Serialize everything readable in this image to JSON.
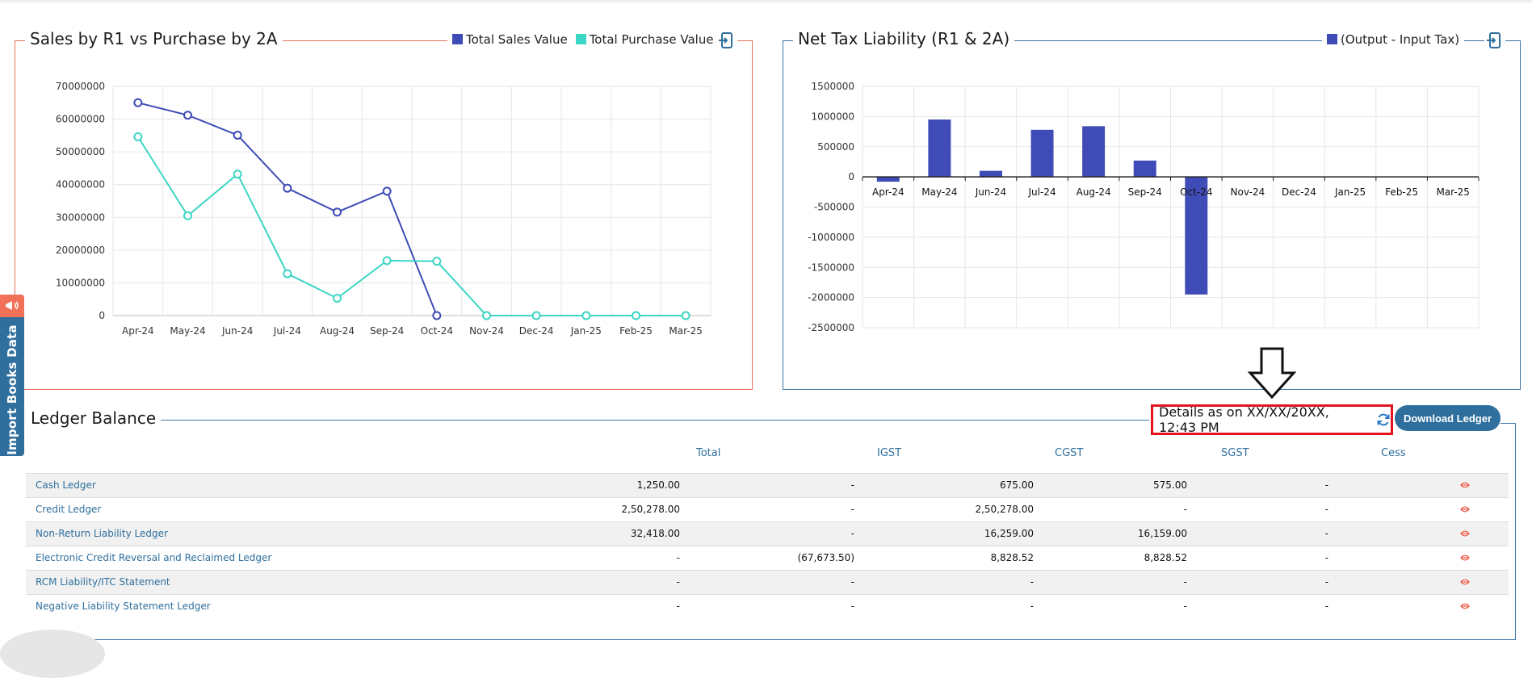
{
  "sales_chart": {
    "title": "Sales by R1 vs Purchase by 2A",
    "legend": [
      {
        "label": "Total Sales Value",
        "color": "#3f4bb6"
      },
      {
        "label": "Total Purchase Value",
        "color": "#3cd6c4"
      }
    ],
    "export_icon": "export-icon"
  },
  "tax_chart": {
    "title": "Net Tax Liability (R1 & 2A)",
    "legend": [
      {
        "label": "(Output - Input Tax)",
        "color": "#3f4bb6"
      }
    ],
    "export_icon": "export-icon"
  },
  "chart_data": [
    {
      "type": "line",
      "title": "Sales by R1 vs Purchase by 2A",
      "categories": [
        "Apr-24",
        "May-24",
        "Jun-24",
        "Jul-24",
        "Aug-24",
        "Sep-24",
        "Oct-24",
        "Nov-24",
        "Dec-24",
        "Jan-25",
        "Feb-25",
        "Mar-25"
      ],
      "yticks": [
        "0",
        "10000000",
        "20000000",
        "30000000",
        "40000000",
        "50000000",
        "60000000",
        "70000000"
      ],
      "ylim": [
        0,
        70000000
      ],
      "grid": true,
      "legend_position": "top-right",
      "series": [
        {
          "name": "Total Sales Value",
          "color": "#3f4bb6",
          "values": [
            65000000,
            61200000,
            55100000,
            38900000,
            31600000,
            38000000,
            0,
            null,
            null,
            null,
            null,
            null
          ]
        },
        {
          "name": "Total Purchase Value",
          "color": "#3cd6c4",
          "values": [
            54600000,
            30500000,
            43200000,
            12800000,
            5300000,
            16800000,
            16600000,
            0,
            0,
            0,
            0,
            0
          ]
        }
      ]
    },
    {
      "type": "bar",
      "title": "Net Tax Liability (R1 & 2A)",
      "categories": [
        "Apr-24",
        "May-24",
        "Jun-24",
        "Jul-24",
        "Aug-24",
        "Sep-24",
        "Oct-24",
        "Nov-24",
        "Dec-24",
        "Jan-25",
        "Feb-25",
        "Mar-25"
      ],
      "yticks": [
        "1500000",
        "1000000",
        "500000",
        "0",
        "-500000",
        "-1000000",
        "-1500000",
        "-2000000",
        "-2500000"
      ],
      "ylim": [
        -2500000,
        1500000
      ],
      "grid": true,
      "legend_position": "top-right",
      "series": [
        {
          "name": "(Output - Input Tax)",
          "color": "#3f4bb6",
          "values": [
            -80000,
            950000,
            100000,
            780000,
            840000,
            270000,
            -1950000,
            0,
            0,
            0,
            0,
            0
          ]
        }
      ]
    }
  ],
  "side_tab": {
    "label": "Import Books Data",
    "icon": "megaphone-icon"
  },
  "ledger": {
    "title": "Ledger Balance",
    "details_text": "Details as on XX/XX/20XX, 12:43 PM",
    "refresh_icon": "refresh-icon",
    "download_label": "Download Ledger",
    "columns": [
      "Total",
      "IGST",
      "CGST",
      "SGST",
      "Cess"
    ],
    "rows": [
      {
        "name": "Cash Ledger",
        "total": "1,250.00",
        "igst": "-",
        "cgst": "675.00",
        "sgst": "575.00",
        "cess": "-"
      },
      {
        "name": "Credit Ledger",
        "total": "2,50,278.00",
        "igst": "-",
        "cgst": "2,50,278.00",
        "sgst": "-",
        "cess": "-"
      },
      {
        "name": "Non-Return Liability Ledger",
        "total": "32,418.00",
        "igst": "-",
        "cgst": "16,259.00",
        "sgst": "16,159.00",
        "cess": "-"
      },
      {
        "name": "Electronic Credit Reversal and Reclaimed Ledger",
        "total": "-",
        "igst": "(67,673.50)",
        "cgst": "8,828.52",
        "sgst": "8,828.52",
        "cess": "-"
      },
      {
        "name": "RCM Liability/ITC Statement",
        "total": "-",
        "igst": "-",
        "cgst": "-",
        "sgst": "-",
        "cess": "-"
      },
      {
        "name": "Negative Liability Statement Ledger",
        "total": "-",
        "igst": "-",
        "cgst": "-",
        "sgst": "-",
        "cess": "-"
      }
    ],
    "row_icon": "eye-icon"
  }
}
